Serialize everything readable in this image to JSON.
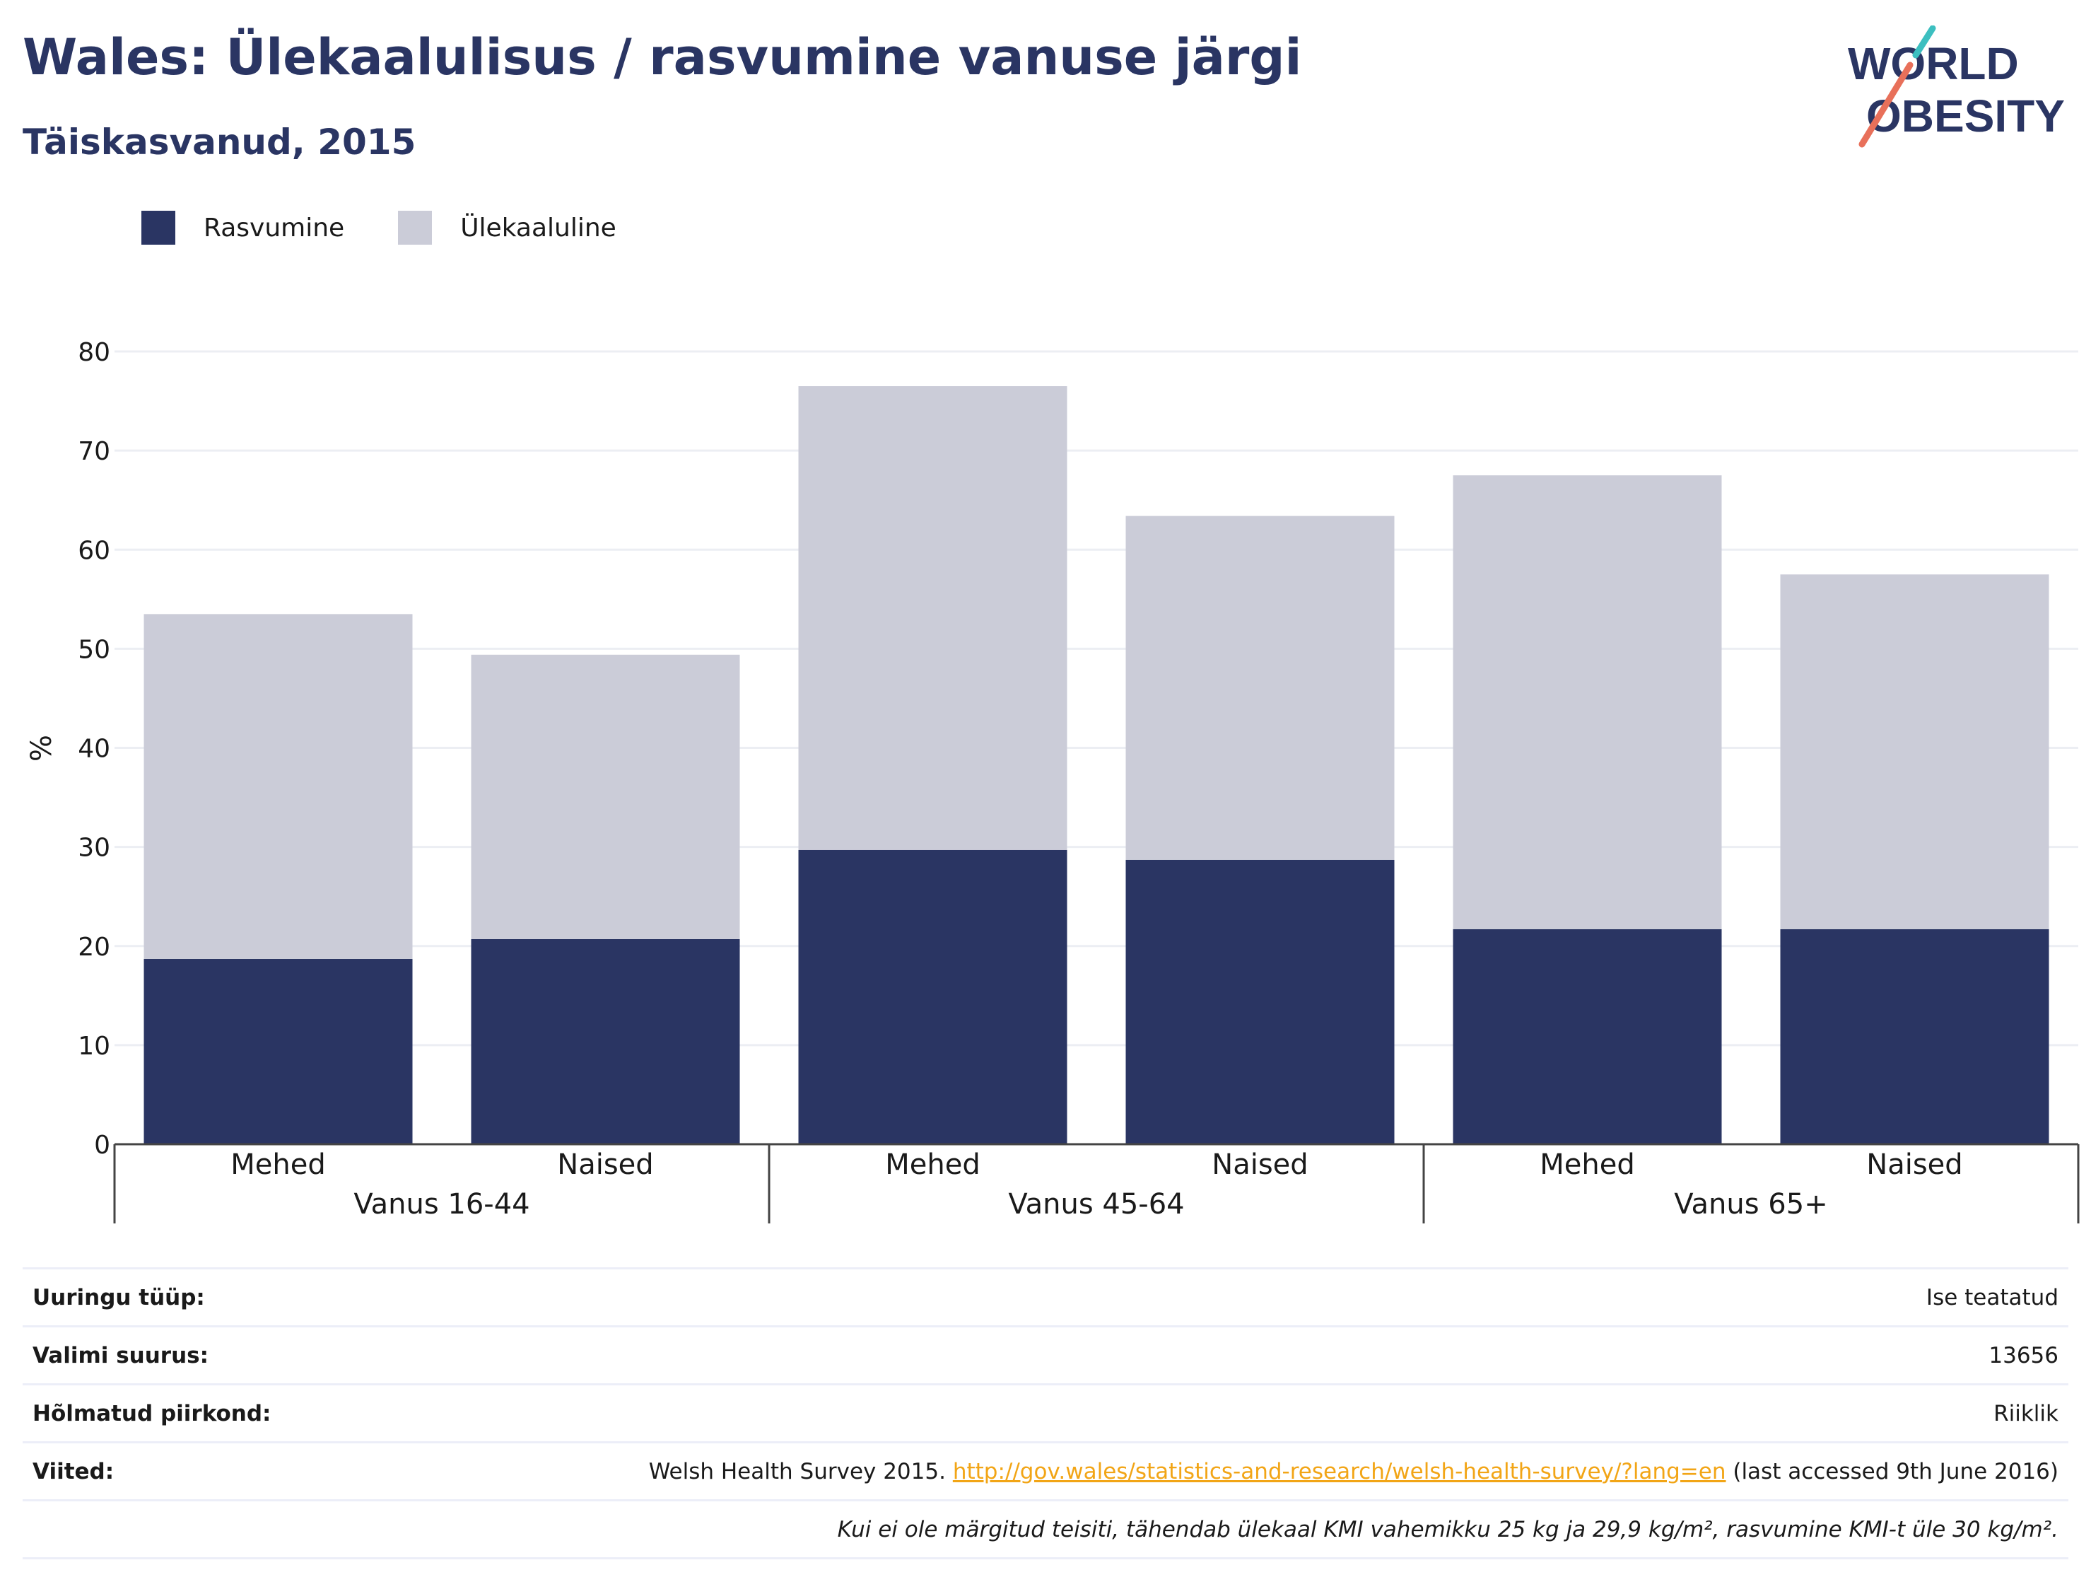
{
  "header": {
    "title": "Wales: Ülekaalulisus / rasvumine vanuse järgi",
    "subtitle": "Täiskasvanud, 2015"
  },
  "logo": {
    "line1": "WORLD",
    "line2": "OBESITY"
  },
  "legend": [
    {
      "label": "Rasvumine",
      "color": "#2a3563"
    },
    {
      "label": "Ülekaaluline",
      "color": "#cbccd8"
    }
  ],
  "chart_data": {
    "type": "bar",
    "stacked": true,
    "ylabel": "%",
    "ylim": [
      0,
      80
    ],
    "yticks": [
      0,
      10,
      20,
      30,
      40,
      50,
      60,
      70,
      80
    ],
    "grid": true,
    "legend_position": "top-left",
    "groups": [
      {
        "label": "Vanus 16-44",
        "categories": [
          "Mehed",
          "Naised"
        ]
      },
      {
        "label": "Vanus 45-64",
        "categories": [
          "Mehed",
          "Naised"
        ]
      },
      {
        "label": "Vanus 65+",
        "categories": [
          "Mehed",
          "Naised"
        ]
      }
    ],
    "series": [
      {
        "name": "Rasvumine",
        "color": "#2a3563",
        "values": [
          18.7,
          20.7,
          29.7,
          28.7,
          21.7,
          21.7
        ]
      },
      {
        "name": "Ülekaaluline",
        "color": "#cbccd8",
        "values": [
          34.8,
          28.7,
          46.8,
          34.7,
          45.8,
          35.8
        ]
      }
    ]
  },
  "meta": {
    "survey_type_label": "Uuringu tüüp:",
    "survey_type_value": "Ise teatatud",
    "sample_size_label": "Valimi suurus:",
    "sample_size_value": "13656",
    "area_label": "Hõlmatud piirkond:",
    "area_value": "Riiklik",
    "refs_label": "Viited:",
    "refs_text": "Welsh Health Survey 2015.",
    "refs_link": "http://gov.wales/statistics-and-research/welsh-health-survey/?lang=en",
    "refs_after": "(last accessed 9th June 2016)",
    "footnote": "Kui ei ole märgitud teisiti, tähendab ülekaal KMI vahemikku 25 kg ja 29,9 kg/m², rasvumine KMI-t üle 30 kg/m²."
  }
}
